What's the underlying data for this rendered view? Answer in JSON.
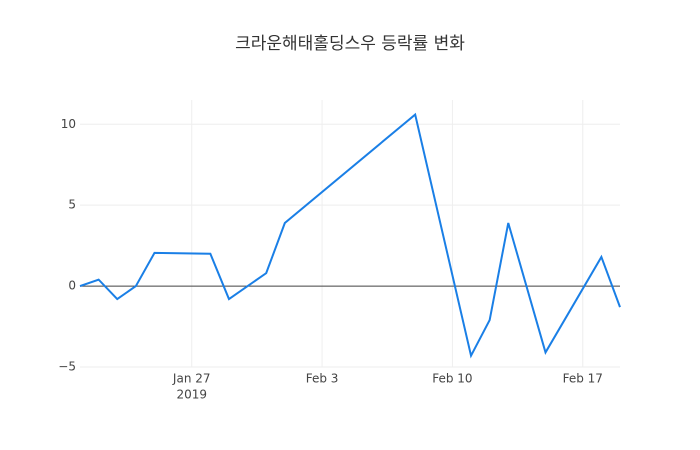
{
  "chart_data": {
    "type": "line",
    "title": "크라운해태홀딩스우 등락률 변화",
    "x": [
      "2019-01-21",
      "2019-01-22",
      "2019-01-23",
      "2019-01-24",
      "2019-01-25",
      "2019-01-28",
      "2019-01-29",
      "2019-01-31",
      "2019-02-01",
      "2019-02-08",
      "2019-02-11",
      "2019-02-12",
      "2019-02-13",
      "2019-02-15",
      "2019-02-18",
      "2019-02-19"
    ],
    "series": [
      {
        "color": "#1a7fe6",
        "values": [
          0,
          0.4,
          -0.8,
          0,
          2.05,
          2.0,
          -0.8,
          0.8,
          3.9,
          10.6,
          -4.3,
          -2.1,
          3.9,
          -4.1,
          1.8,
          -1.3
        ]
      }
    ],
    "xlim": [
      "2019-01-21",
      "2019-02-19"
    ],
    "xticks": [
      {
        "value": "2019-01-27",
        "label": "Jan 27"
      },
      {
        "value": "2019-02-03",
        "label": "Feb 3"
      },
      {
        "value": "2019-02-10",
        "label": "Feb 10"
      },
      {
        "value": "2019-02-17",
        "label": "Feb 17"
      }
    ],
    "x_year_label": "2019",
    "ylim": [
      -5,
      11.5
    ],
    "yticks": [
      {
        "value": -5,
        "label": "−5"
      },
      0,
      5,
      10
    ],
    "grid": true,
    "zero_line": true
  }
}
